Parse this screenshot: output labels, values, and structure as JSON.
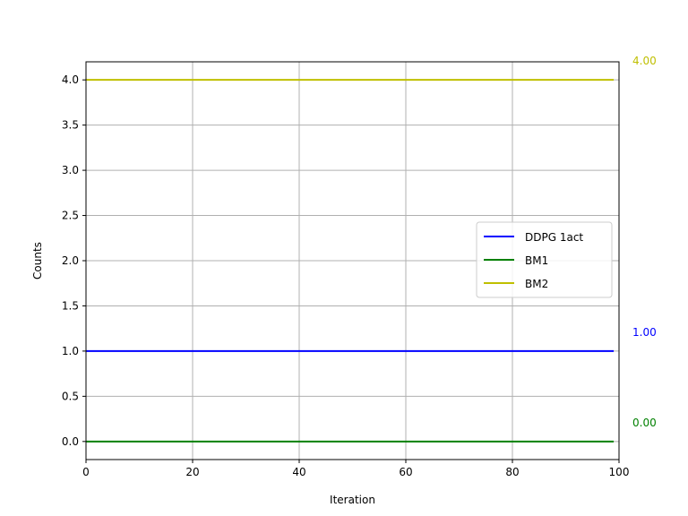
{
  "chart_data": {
    "type": "line",
    "xlabel": "Iteration",
    "ylabel": "Counts",
    "xlim": [
      0,
      100
    ],
    "ylim": [
      -0.2,
      4.2
    ],
    "x_ticks": [
      0,
      20,
      40,
      60,
      80,
      100
    ],
    "x_tick_labels": [
      "0",
      "20",
      "40",
      "60",
      "80",
      "100"
    ],
    "y_ticks": [
      0.0,
      0.5,
      1.0,
      1.5,
      2.0,
      2.5,
      3.0,
      3.5,
      4.0
    ],
    "y_tick_labels": [
      "0.0",
      "0.5",
      "1.0",
      "1.5",
      "2.0",
      "2.5",
      "3.0",
      "3.5",
      "4.0"
    ],
    "grid": true,
    "legend_position": "center-right",
    "series": [
      {
        "name": "DDPG 1act",
        "color": "#0000ff",
        "x": [
          0,
          99
        ],
        "values": [
          1.0,
          1.0
        ],
        "end_label": "1.00"
      },
      {
        "name": "BM1",
        "color": "#008000",
        "x": [
          0,
          99
        ],
        "values": [
          0.0,
          0.0
        ],
        "end_label": "0.00"
      },
      {
        "name": "BM2",
        "color": "#bfbf00",
        "x": [
          0,
          99
        ],
        "values": [
          4.0,
          4.0
        ],
        "end_label": "4.00"
      }
    ]
  }
}
